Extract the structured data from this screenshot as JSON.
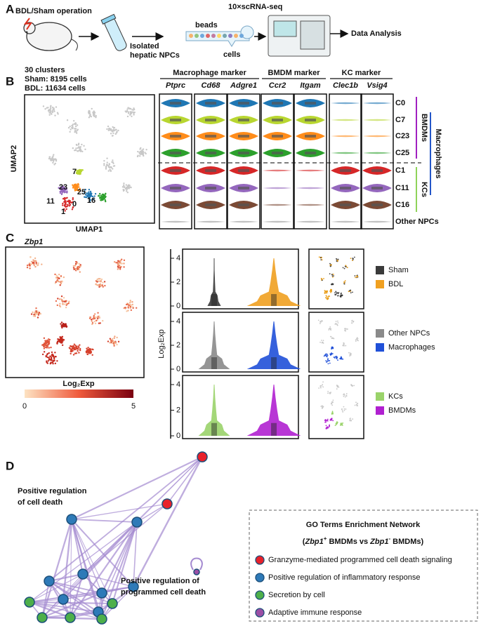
{
  "panel_labels": [
    "A",
    "B",
    "C",
    "D"
  ],
  "panel_a": {
    "operation": "BDL/Sham operation",
    "isolation": [
      "Isolated",
      "hepatic NPCs"
    ],
    "method": "10×scRNA-seq",
    "beads": "beads",
    "cells": "cells",
    "analysis": "Data Analysis"
  },
  "panel_b": {
    "summary": [
      "30 clusters",
      "Sham: 8195 cells",
      "BDL: 11634 cells"
    ],
    "umap_x": "UMAP1",
    "umap_y": "UMAP2",
    "cluster_labels": [
      "7",
      "23",
      "25",
      "11",
      "0",
      "16",
      "1"
    ],
    "marker_groups": [
      {
        "name": "Macrophage marker",
        "genes": [
          "Ptprc",
          "Cd68",
          "Adgre1"
        ]
      },
      {
        "name": "BMDM marker",
        "genes": [
          "Ccr2",
          "Itgam"
        ]
      },
      {
        "name": "KC marker",
        "genes": [
          "Clec1b",
          "Vsig4"
        ]
      }
    ],
    "clusters": [
      "C0",
      "C7",
      "C23",
      "C25",
      "C1",
      "C11",
      "C16",
      "Other NPCs"
    ],
    "groups": [
      "BMDMs",
      "KCs",
      "Macrophages"
    ]
  },
  "panel_c": {
    "gene": "Zbp1",
    "colorbar_label": "Log₂Exp",
    "colorbar_ticks": [
      0,
      5
    ],
    "y_label": "Log₂Exp",
    "yticks": [
      0,
      2,
      4
    ],
    "comparisons": [
      [
        "Sham",
        "BDL"
      ],
      [
        "Other NPCs",
        "Macrophages"
      ],
      [
        "KCs",
        "BMDMs"
      ]
    ]
  },
  "panel_d": {
    "node_labels": [
      [
        "Positive regulation",
        "of cell death"
      ],
      [
        "Positive regulation of",
        "programmed cell death"
      ]
    ],
    "legend_title": "GO Terms Enrichment Network",
    "legend_subtitle": [
      "(",
      "Zbp1",
      "+",
      " BMDMs vs ",
      "Zbp1",
      "-",
      " BMDMs)"
    ],
    "legend_items": [
      "Granzyme-mediated programmed cell death signaling",
      "Positive regulation of inflammatory response",
      "Secretion by cell",
      "Adaptive immune response"
    ]
  }
}
